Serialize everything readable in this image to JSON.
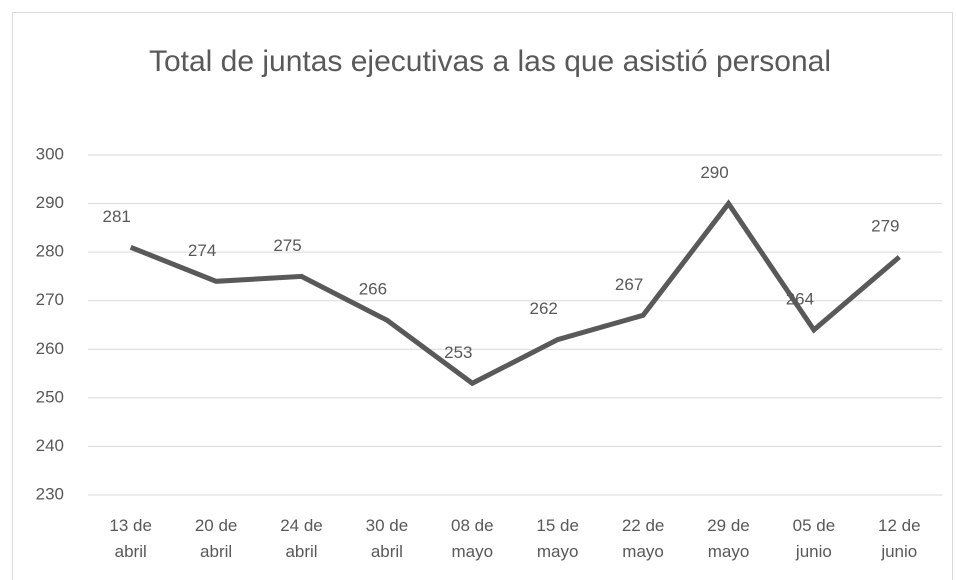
{
  "chart_data": {
    "type": "line",
    "title": "Total de juntas ejecutivas a las que asistió personal",
    "categories": [
      "13 de abril",
      "20 de abril",
      "24 de abril",
      "30 de abril",
      "08 de mayo",
      "15 de mayo",
      "22 de mayo",
      "29 de mayo",
      "05 de junio",
      "12 de junio"
    ],
    "series": [
      {
        "name": "Total",
        "color": "#595959",
        "values": [
          281,
          274,
          275,
          266,
          253,
          262,
          267,
          290,
          264,
          279
        ]
      }
    ],
    "ylim": [
      230,
      300
    ],
    "yticks": [
      230,
      240,
      250,
      260,
      270,
      280,
      290,
      300
    ],
    "grid": true
  }
}
